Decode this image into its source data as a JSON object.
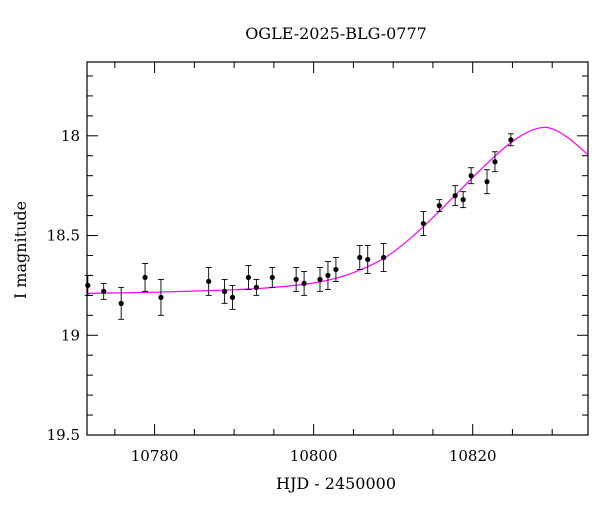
{
  "chart_data": {
    "type": "scatter",
    "title": "OGLE-2025-BLG-0777",
    "xlabel": "HJD - 2450000",
    "ylabel": "I magnitude",
    "xlim": [
      10771.5,
      10834.5
    ],
    "ylim": [
      19.5,
      17.63
    ],
    "y_inverted": true,
    "x_ticks": [
      10780,
      10800,
      10820
    ],
    "y_ticks": [
      18,
      18.5,
      19,
      19.5
    ],
    "x_tick_labels": [
      "10780",
      "10800",
      "10820"
    ],
    "y_tick_labels": [
      "18",
      "18.5",
      "19",
      "19.5"
    ],
    "grid": false,
    "points_color": "#000000",
    "model_color": "#ff00ff",
    "series": [
      {
        "values": [
          {
            "x": 10771.6,
            "y": 18.75,
            "err": 0.05
          },
          {
            "x": 10773.6,
            "y": 18.78,
            "err": 0.04
          },
          {
            "x": 10775.8,
            "y": 18.84,
            "err": 0.08
          },
          {
            "x": 10778.8,
            "y": 18.71,
            "err": 0.07
          },
          {
            "x": 10780.8,
            "y": 18.81,
            "err": 0.09
          },
          {
            "x": 10786.8,
            "y": 18.73,
            "err": 0.07
          },
          {
            "x": 10788.8,
            "y": 18.78,
            "err": 0.06
          },
          {
            "x": 10789.8,
            "y": 18.81,
            "err": 0.06
          },
          {
            "x": 10791.8,
            "y": 18.71,
            "err": 0.06
          },
          {
            "x": 10792.8,
            "y": 18.76,
            "err": 0.04
          },
          {
            "x": 10794.8,
            "y": 18.71,
            "err": 0.05
          },
          {
            "x": 10797.8,
            "y": 18.72,
            "err": 0.06
          },
          {
            "x": 10798.8,
            "y": 18.74,
            "err": 0.06
          },
          {
            "x": 10800.8,
            "y": 18.72,
            "err": 0.06
          },
          {
            "x": 10801.8,
            "y": 18.7,
            "err": 0.07
          },
          {
            "x": 10802.8,
            "y": 18.67,
            "err": 0.06
          },
          {
            "x": 10805.8,
            "y": 18.61,
            "err": 0.06
          },
          {
            "x": 10806.8,
            "y": 18.62,
            "err": 0.07
          },
          {
            "x": 10808.8,
            "y": 18.61,
            "err": 0.07
          },
          {
            "x": 10813.8,
            "y": 18.44,
            "err": 0.06
          },
          {
            "x": 10815.8,
            "y": 18.35,
            "err": 0.03
          },
          {
            "x": 10817.8,
            "y": 18.3,
            "err": 0.05
          },
          {
            "x": 10818.8,
            "y": 18.32,
            "err": 0.04
          },
          {
            "x": 10819.8,
            "y": 18.2,
            "err": 0.04
          },
          {
            "x": 10821.8,
            "y": 18.23,
            "err": 0.06
          },
          {
            "x": 10822.8,
            "y": 18.13,
            "err": 0.05
          },
          {
            "x": 10824.8,
            "y": 18.02,
            "err": 0.03
          }
        ]
      },
      {
        "type": "line",
        "values": [
          {
            "x": 10771.5,
            "y": 18.79
          },
          {
            "x": 10780.0,
            "y": 18.784
          },
          {
            "x": 10790.0,
            "y": 18.772
          },
          {
            "x": 10795.0,
            "y": 18.76
          },
          {
            "x": 10800.0,
            "y": 18.738
          },
          {
            "x": 10803.0,
            "y": 18.712
          },
          {
            "x": 10806.0,
            "y": 18.67
          },
          {
            "x": 10809.0,
            "y": 18.61
          },
          {
            "x": 10812.0,
            "y": 18.52
          },
          {
            "x": 10815.0,
            "y": 18.41
          },
          {
            "x": 10818.0,
            "y": 18.29
          },
          {
            "x": 10821.0,
            "y": 18.17
          },
          {
            "x": 10824.0,
            "y": 18.06
          },
          {
            "x": 10826.5,
            "y": 17.99
          },
          {
            "x": 10828.5,
            "y": 17.96
          },
          {
            "x": 10830.0,
            "y": 17.965
          },
          {
            "x": 10832.0,
            "y": 18.01
          },
          {
            "x": 10834.5,
            "y": 18.095
          }
        ]
      }
    ]
  }
}
